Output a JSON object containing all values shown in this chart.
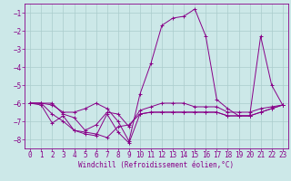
{
  "xlabel": "Windchill (Refroidissement éolien,°C)",
  "background_color": "#cce8e8",
  "grid_color": "#aacccc",
  "line_color": "#880088",
  "x_values": [
    0,
    1,
    2,
    3,
    4,
    5,
    6,
    7,
    8,
    9,
    10,
    11,
    12,
    13,
    14,
    15,
    16,
    17,
    18,
    19,
    20,
    21,
    22,
    23
  ],
  "line1": [
    -6.0,
    -6.0,
    -6.1,
    -6.5,
    -6.5,
    -6.3,
    -6.0,
    -6.3,
    -7.0,
    -8.1,
    -5.5,
    -3.8,
    -1.7,
    -1.3,
    -1.2,
    -0.8,
    -2.3,
    -5.8,
    -6.3,
    -6.7,
    -6.7,
    -2.3,
    -5.0,
    -6.1
  ],
  "line2": [
    -6.0,
    -6.0,
    -6.0,
    -6.6,
    -6.8,
    -7.5,
    -7.2,
    -6.5,
    -6.6,
    -7.3,
    -6.4,
    -6.2,
    -6.0,
    -6.0,
    -6.0,
    -6.2,
    -6.2,
    -6.2,
    -6.5,
    -6.5,
    -6.5,
    -6.3,
    -6.2,
    -6.1
  ],
  "line3": [
    -6.0,
    -6.0,
    -6.6,
    -7.0,
    -7.5,
    -7.6,
    -7.7,
    -7.9,
    -7.3,
    -7.2,
    -6.6,
    -6.5,
    -6.5,
    -6.5,
    -6.5,
    -6.5,
    -6.5,
    -6.5,
    -6.7,
    -6.7,
    -6.7,
    -6.5,
    -6.3,
    -6.1
  ],
  "line4": [
    -6.0,
    -6.1,
    -7.1,
    -6.7,
    -7.5,
    -7.7,
    -7.8,
    -6.6,
    -7.6,
    -8.2,
    -6.6,
    -6.5,
    -6.5,
    -6.5,
    -6.5,
    -6.5,
    -6.5,
    -6.5,
    -6.7,
    -6.7,
    -6.7,
    -6.5,
    -6.3,
    -6.1
  ],
  "ylim": [
    -8.5,
    -0.5
  ],
  "yticks": [
    -8,
    -7,
    -6,
    -5,
    -4,
    -3,
    -2,
    -1
  ],
  "xlim": [
    -0.5,
    23.5
  ],
  "xticks": [
    0,
    1,
    2,
    3,
    4,
    5,
    6,
    7,
    8,
    9,
    10,
    11,
    12,
    13,
    14,
    15,
    16,
    17,
    18,
    19,
    20,
    21,
    22,
    23
  ],
  "xlabel_fontsize": 5.5,
  "tick_fontsize": 5.5,
  "linewidth": 0.7,
  "markersize": 2.5
}
